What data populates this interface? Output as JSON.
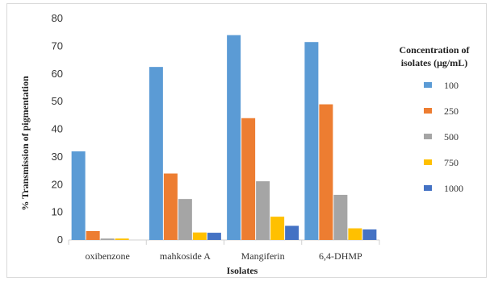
{
  "chart_data": {
    "type": "bar",
    "categories": [
      "oxibenzone",
      "mahkoside A",
      "Mangiferin",
      "6,4-DHMP"
    ],
    "series": [
      {
        "name": "100",
        "values": [
          32,
          62.5,
          74,
          71.5
        ],
        "color": "#5b9bd5"
      },
      {
        "name": "250",
        "values": [
          3.2,
          24,
          44,
          49
        ],
        "color": "#ed7d31"
      },
      {
        "name": "500",
        "values": [
          0.5,
          14.8,
          21.2,
          16.3
        ],
        "color": "#a5a5a5"
      },
      {
        "name": "750",
        "values": [
          0.5,
          2.7,
          8.4,
          4.2
        ],
        "color": "#ffc000"
      },
      {
        "name": "1000",
        "values": [
          0,
          2.6,
          5.1,
          3.8
        ],
        "color": "#4472c4"
      }
    ],
    "title": "",
    "xlabel": "Isolates",
    "ylabel": "% Transmission of pigmentation",
    "ylim": [
      0,
      80
    ],
    "yticks": [
      0,
      10,
      20,
      30,
      40,
      50,
      60,
      70,
      80
    ],
    "grid": false,
    "legend": {
      "title_line1": "Concentration  of",
      "title_line2": "isolates  (μg/mL)",
      "placement": "right"
    }
  }
}
